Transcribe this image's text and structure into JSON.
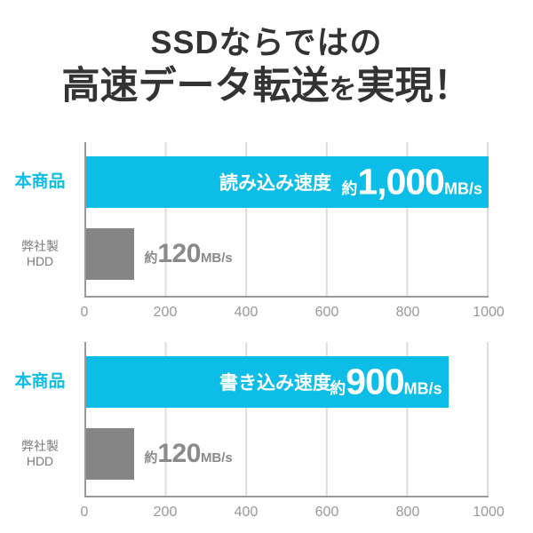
{
  "page": {
    "title_line1": "SSDならではの",
    "title_line2_main": "高速データ転送",
    "title_line2_small": "を",
    "title_line2_end": "実現！"
  },
  "colors": {
    "accent_cyan": "#0CBDE7",
    "bar_gray": "#858585",
    "title_dark": "#333333"
  },
  "charts": [
    {
      "product_label": "本商品",
      "competitor_label_line1": "弊社製",
      "competitor_label_line2": "HDD",
      "bar_title": "読み込み速度",
      "product_value_prefix": "約",
      "product_value": "1,000",
      "product_value_unit": "MB/s",
      "competitor_value_prefix": "約",
      "competitor_value": "120",
      "competitor_value_unit": "MB/s",
      "ticks": [
        "0",
        "200",
        "400",
        "600",
        "800",
        "1000"
      ]
    },
    {
      "product_label": "本商品",
      "competitor_label_line1": "弊社製",
      "competitor_label_line2": "HDD",
      "bar_title": "書き込み速度",
      "product_value_prefix": "約",
      "product_value": "900",
      "product_value_unit": "MB/s",
      "competitor_value_prefix": "約",
      "competitor_value": "120",
      "competitor_value_unit": "MB/s",
      "ticks": [
        "0",
        "200",
        "400",
        "600",
        "800",
        "1000"
      ]
    }
  ],
  "chart_data": [
    {
      "type": "bar",
      "orientation": "horizontal",
      "title": "読み込み速度",
      "categories": [
        "本商品",
        "弊社製HDD"
      ],
      "values": [
        1000,
        120
      ],
      "value_labels": [
        "約1,000MB/s",
        "約120MB/s"
      ],
      "xlabel": "",
      "ylabel": "",
      "xlim": [
        0,
        1000
      ],
      "x_ticks": [
        0,
        200,
        400,
        600,
        800,
        1000
      ],
      "bar_colors": [
        "#0CBDE7",
        "#858585"
      ],
      "grid": true,
      "legend": false
    },
    {
      "type": "bar",
      "orientation": "horizontal",
      "title": "書き込み速度",
      "categories": [
        "本商品",
        "弊社製HDD"
      ],
      "values": [
        900,
        120
      ],
      "value_labels": [
        "約900MB/s",
        "約120MB/s"
      ],
      "xlabel": "",
      "ylabel": "",
      "xlim": [
        0,
        1000
      ],
      "x_ticks": [
        0,
        200,
        400,
        600,
        800,
        1000
      ],
      "bar_colors": [
        "#0CBDE7",
        "#858585"
      ],
      "grid": true,
      "legend": false
    }
  ]
}
